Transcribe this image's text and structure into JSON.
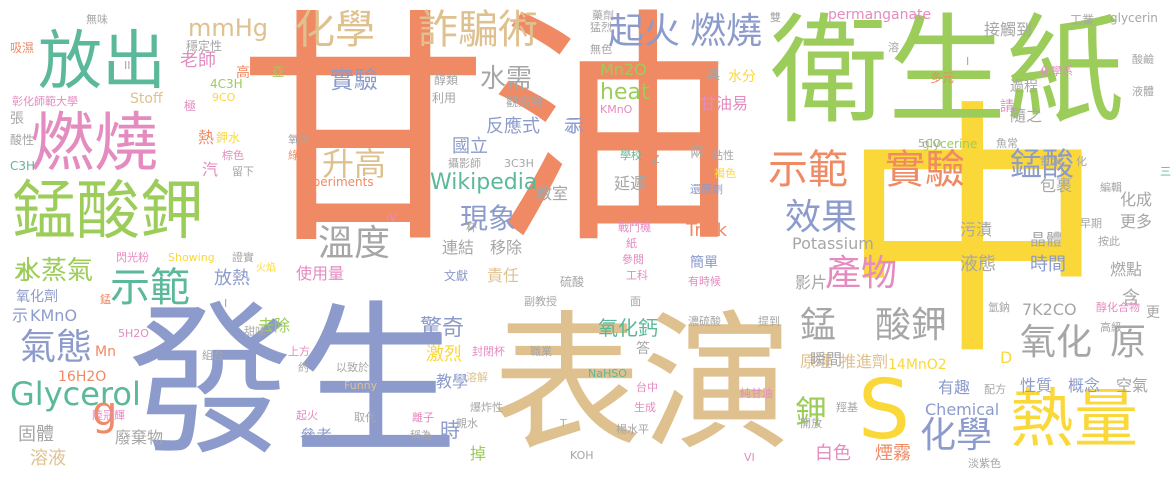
{
  "palette": {
    "orange": "#f08a64",
    "green": "#9ccc5a",
    "blue": "#8c9bcb",
    "tan": "#dfc18f",
    "teal": "#5cb89a",
    "yellow": "#fbd83a",
    "pink": "#e48bc0",
    "gray": "#a6a6a6"
  },
  "words": {
    "gan_you": "甘油",
    "zhong": "中",
    "fa_sheng": "發生",
    "biao_yan": "表演",
    "wei_sheng_zhi": "衛生紙",
    "meng_suan_jia": "錳酸鉀",
    "ran_shao": "燃燒",
    "fang_chu": "放出",
    "re_liang": "熱量",
    "s": "S",
    "hua_xue": "化學",
    "zha_pian_shu": "詐騙術",
    "qi_huo": "起火",
    "ran_shao2": "燃燒",
    "shi_fan": "示範",
    "shi_yan": "實驗",
    "meng_suan": "錳酸",
    "xiao_guo": "效果",
    "chan_wu": "產物",
    "wen_du": "溫度",
    "sheng_gao": "升高",
    "xian_xiang": "現象",
    "shi_fan2": "示範",
    "qi_tai": "氣態",
    "glycerol": "Glycerol",
    "mmhg": "mmHg",
    "shi_yan2": "實驗",
    "meng": "錳",
    "suan_jia": "酸鉀",
    "yang_hua": "氧化",
    "yuan": "原",
    "jia": "鉀",
    "hua_xue2": "化學",
    "wikipedia": "Wikipedia",
    "fan_ying_shi": "反應式",
    "shui_zheng_qi": "水蒸氣",
    "jing_qi": "驚奇",
    "yang_hua_gai": "氧化鈣",
    "heat": "heat",
    "mn2o": "Mn2O",
    "trick": "Trick",
    "potassium": "Potassium",
    "g": "g",
    "shui_xu": "水需",
    "lao_shi": "老師",
    "guo_li": "國立",
    "shi": "示",
    "jiao_shi": "教室",
    "yan_chi": "延遲",
    "lian_jie": "連結",
    "yi_chu": "移除",
    "ze_ren": "責任",
    "shi_yong_liang": "使用量",
    "fang_re": "放熱",
    "qu_chu": "去除",
    "ji_lie": "激烈",
    "jiao_xue": "教學",
    "can_kao": "參考",
    "shi2": "時",
    "diao": "掉",
    "gu_ti": "固體",
    "rong_ye": "溶液",
    "fei_qi_wu": "廢棄物",
    "shi_jian": "時間",
    "jing_ti": "晶體",
    "ye_tai": "液態",
    "wu_zi": "污漬",
    "ran_dian": "燃點",
    "hua_cheng": "化成",
    "geng_duo": "更多",
    "bao_guo": "包裹",
    "bai_se": "白色",
    "yan_wu": "煙霧",
    "xing_zhi": "性質",
    "gai_nian": "概念",
    "kong_qi": "空氣",
    "you_qu": "有趣",
    "chemical": "Chemical",
    "yuan_li": "原理",
    "tui_jin_ji": "推進劑",
    "ying_pian": "影片",
    "shun_jian": "瞬間",
    "d": "D",
    "han": "含",
    "k2co": "7K2CO",
    "mn14": "14MnO2",
    "h2o16": "16H2O",
    "kmno_a": "KMnO",
    "shi3": "示",
    "mn": "Mn",
    "yang_hua_ji": "氧化劑",
    "shui": "水",
    "gan_you_yi": "甘油易",
    "shui_fen": "水分",
    "ju": "具",
    "jie_chu_dao": "接觸到",
    "guo_cheng": "過程",
    "qing": "請",
    "sui_zhi": "隨之",
    "permanganate": "permanganate",
    "shi4": "示",
    "gao": "高",
    "stoff": "Stoff",
    "h3c4": "4C3H",
    "liang": "兩",
    "jian_dan": "簡單",
    "da": "答",
    "experiments": "Experiments",
    "glycerine": "glycerine",
    "glycerin": "glycerin",
    "gong_ye": "工業",
    "ya": "亞",
    "chun_lei": "醇類",
    "li_yong": "利用",
    "guan_cha_dao": "觀察到",
    "kmno_b": "KMnO",
    "re": "熱",
    "xi_shi": "吸濕",
    "zhang": "張",
    "suan_xing": "酸性",
    "c3h": "C3H",
    "zhang_hua": "彰化師範大學",
    "wu_wei": "無味",
    "wu_se": "無色",
    "meng_lie": "猛烈",
    "wen_ding_xing": "穩定性",
    "ji": "極",
    "co9": "9CO",
    "jia_shui": "鉀水",
    "zong_se": "棕色",
    "qi": "汽",
    "liu_xia": "留下",
    "lu_se": "綠色",
    "yang_hua2": "氧化",
    "she_ying_shi": "攝影師",
    "h3c3": "3C3H",
    "xue_xiao": "學校",
    "nian_xing": "粘性",
    "he_se": "褐色",
    "huan_yuan_ji": "還原劑",
    "zhan_dou_ji": "戰鬥機",
    "zhi": "紙",
    "can_yue": "參閱",
    "gong_ke": "工科",
    "you_shi_hou": "有時候",
    "z": "Z",
    "bei": "杯",
    "wen_xian": "文獻",
    "fu_jiao_shou": "副教授",
    "liu_suan": "硫酸",
    "nong_liu_suan": "濃硫酸",
    "ti_dao": "提到",
    "mian": "面",
    "feng_bi_bei": "封閉杯",
    "zhi_ye": "職業",
    "rong_jie": "溶解",
    "shang_fang": "上方",
    "yi_zhi_yu": "以致於",
    "yue": "約",
    "funny": "Funny",
    "tian_wei": "甜味",
    "zu_he": "組合",
    "h5o2": "5H2O",
    "showing": "Showing",
    "huo_yan": "火焰",
    "shan_guang_fen": "閃光粉",
    "zheng_shi": "證實",
    "lu_guan_hui": "陸冠輝",
    "qi_huo2": "起火",
    "qu_dai": "取代",
    "li_zi": "離子",
    "cheng_wei": "稱為",
    "qin_shui": "親水",
    "bao_zha_xing": "爆炸性",
    "t": "T",
    "koh": "KOH",
    "sheng_cheng": "生成",
    "yang_shui_ping": "楊水平",
    "tai_zhong": "台中",
    "nahso": "NaHSO",
    "chun_gan_you": "純甘油",
    "kai_fang": "開放",
    "cheng_ji": "羥基",
    "pei_fang": "配方",
    "dan_zi_se": "淡紫色",
    "vi": "VI",
    "gao_ji": "高級",
    "geng": "更",
    "duo_yuan": "多元",
    "hua_xue_xi": "化學系",
    "ye_ti": "液體",
    "suan_jian": "酸鹼",
    "yu_chang": "魚常",
    "yang_shui": "氧水",
    "hua": "化",
    "san": "三",
    "bian_ji": "編輯",
    "zao_qi": "早期",
    "an_pi": "按此",
    "qing_na": "氫鈉",
    "chun_hua_he_wu": "醇化合物",
    "rong": "溶",
    "co5": "5CO",
    "yao_ji": "藥劑",
    "shuang": "雙",
    "i1": "I",
    "i2": "I",
    "i3": "I",
    "iv": "IV",
    "ii": "II",
    "meng2": "錳"
  }
}
